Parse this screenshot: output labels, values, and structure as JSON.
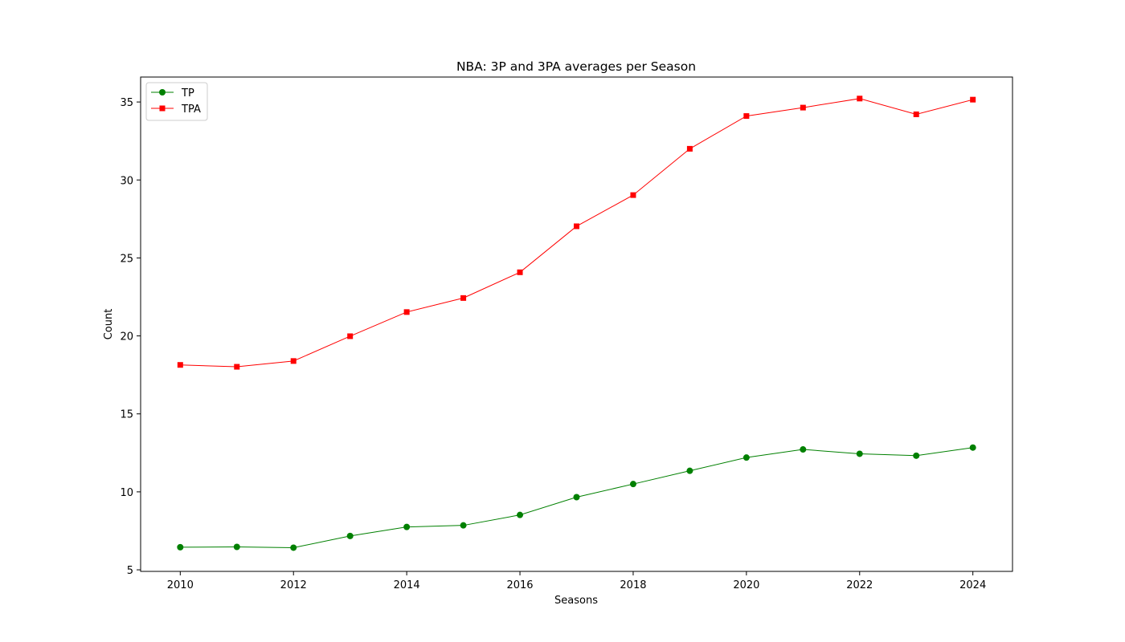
{
  "chart_data": {
    "type": "line",
    "title": "NBA: 3P and 3PA averages per Season",
    "xlabel": "Seasons",
    "ylabel": "Count",
    "xlim": [
      2009.3,
      2024.7
    ],
    "ylim": [
      4.9,
      36.6
    ],
    "x": [
      2010,
      2011,
      2012,
      2013,
      2014,
      2015,
      2016,
      2017,
      2018,
      2019,
      2020,
      2021,
      2022,
      2023,
      2024
    ],
    "x_ticks": [
      "2010",
      "2012",
      "2014",
      "2016",
      "2018",
      "2020",
      "2022",
      "2024"
    ],
    "y_ticks": [
      "5",
      "10",
      "15",
      "20",
      "25",
      "30",
      "35"
    ],
    "grid": false,
    "legend": "top-left",
    "series": [
      {
        "name": "TP",
        "color": "#008000",
        "marker": "circle",
        "values": [
          6.45,
          6.47,
          6.42,
          7.17,
          7.75,
          7.85,
          8.52,
          9.66,
          10.5,
          11.35,
          12.2,
          12.72,
          12.44,
          12.32,
          12.84
        ]
      },
      {
        "name": "TPA",
        "color": "#ff0000",
        "marker": "square",
        "values": [
          18.14,
          18.02,
          18.39,
          19.98,
          21.53,
          22.43,
          24.08,
          27.03,
          29.03,
          32.0,
          34.1,
          34.64,
          35.22,
          34.21,
          35.15
        ]
      }
    ]
  }
}
